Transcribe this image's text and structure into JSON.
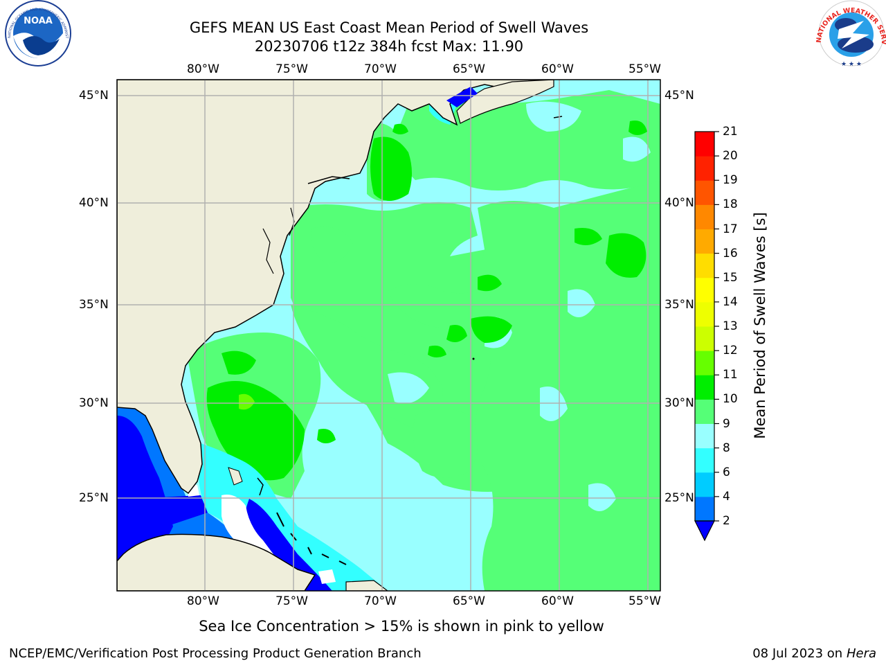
{
  "title": {
    "line1": "GEFS MEAN US East Coast Mean Period of Swell Waves",
    "line2": "20230706 t12z 384h fcst   Max: 11.90"
  },
  "logos": {
    "noara": "NOAA",
    "nws": "NATIONAL WEATHER SERVICE"
  },
  "axes": {
    "lon_labels": [
      "80°W",
      "75°W",
      "70°W",
      "65°W",
      "60°W",
      "55°W"
    ],
    "lat_labels": [
      "45°N",
      "40°N",
      "35°N",
      "30°N",
      "25°N"
    ]
  },
  "colorbar": {
    "label": "Mean Period of Swell Waves [s]",
    "ticks": [
      "2",
      "4",
      "6",
      "8",
      "9",
      "10",
      "11",
      "12",
      "13",
      "14",
      "15",
      "16",
      "17",
      "18",
      "19",
      "20",
      "21"
    ],
    "colors": [
      "#0077ff",
      "#00ccff",
      "#33ffff",
      "#99ffff",
      "#55ff77",
      "#00ee00",
      "#66ff00",
      "#ccff00",
      "#eeff00",
      "#ffff00",
      "#ffdd00",
      "#ffaa00",
      "#ff8800",
      "#ff5500",
      "#ff2200",
      "#ff0000"
    ],
    "under_color": "#0000ff"
  },
  "notes": {
    "sea_ice": "Sea Ice Concentration > 15% is shown in pink to yellow"
  },
  "footer": {
    "left": "NCEP/EMC/Verification Post Processing Product Generation Branch",
    "right_date": "08 Jul 2023 on ",
    "right_machine": "Hera"
  }
}
